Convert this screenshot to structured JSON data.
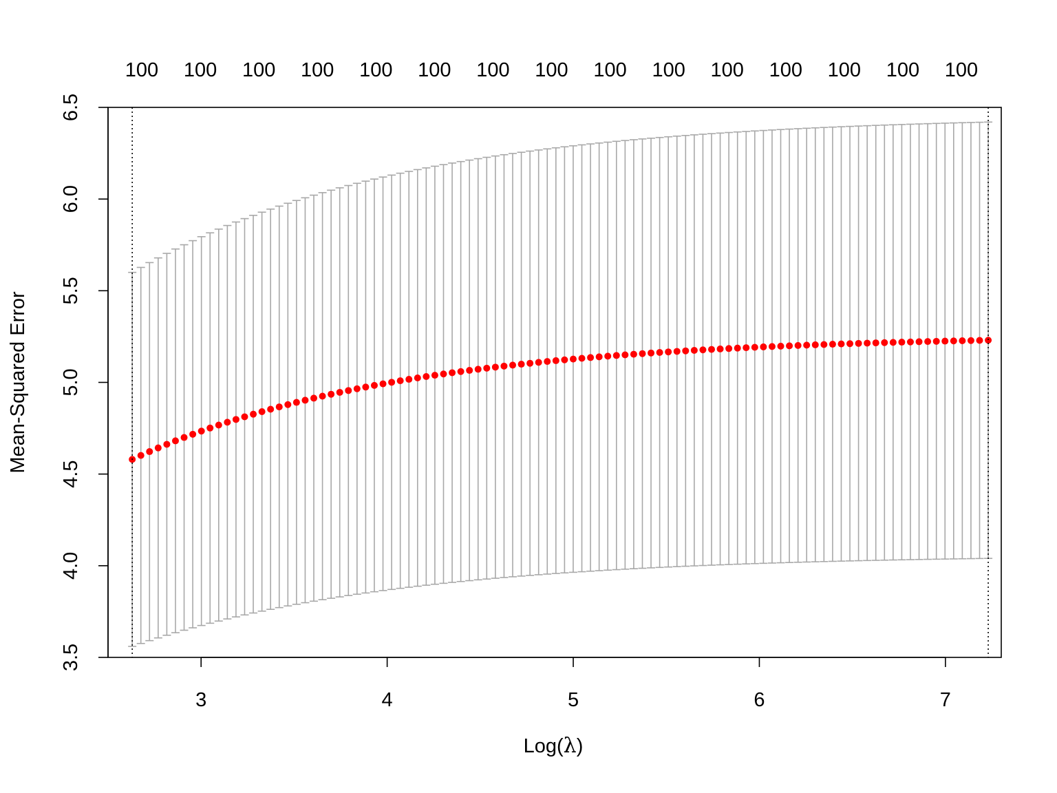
{
  "chart_data": {
    "type": "scatter",
    "xlabel_main": "Log(",
    "xlabel_symbol": "λ",
    "xlabel_close": ")",
    "ylabel": "Mean-Squared Error",
    "xlim": [
      2.5,
      7.3
    ],
    "ylim": [
      3.5,
      6.5
    ],
    "x_ticks": [
      3,
      4,
      5,
      6,
      7
    ],
    "x_tick_labels": [
      "3",
      "4",
      "5",
      "6",
      "7"
    ],
    "y_ticks": [
      3.5,
      4.0,
      4.5,
      5.0,
      5.5,
      6.0,
      6.5
    ],
    "y_tick_labels": [
      "3.5",
      "4.0",
      "4.5",
      "5.0",
      "5.5",
      "6.0",
      "6.5"
    ],
    "top_axis_labels": [
      "100",
      "100",
      "100",
      "100",
      "100",
      "100",
      "100",
      "100",
      "100",
      "100",
      "100",
      "100",
      "100",
      "100",
      "100"
    ],
    "vlines": [
      2.63,
      7.23
    ],
    "series": [
      {
        "x_min": 2.63,
        "x_max": 7.23,
        "n_points": 100,
        "mse_start": 4.58,
        "mse_end": 5.23,
        "upper_start": 5.6,
        "upper_end": 6.42,
        "lower_start": 3.56,
        "lower_end": 4.04
      }
    ],
    "colors": {
      "points": "#ff0000",
      "error_bars": "#a8a8a8",
      "vlines": "#000000",
      "axis": "#000000"
    },
    "grid": false,
    "legend": "none"
  }
}
